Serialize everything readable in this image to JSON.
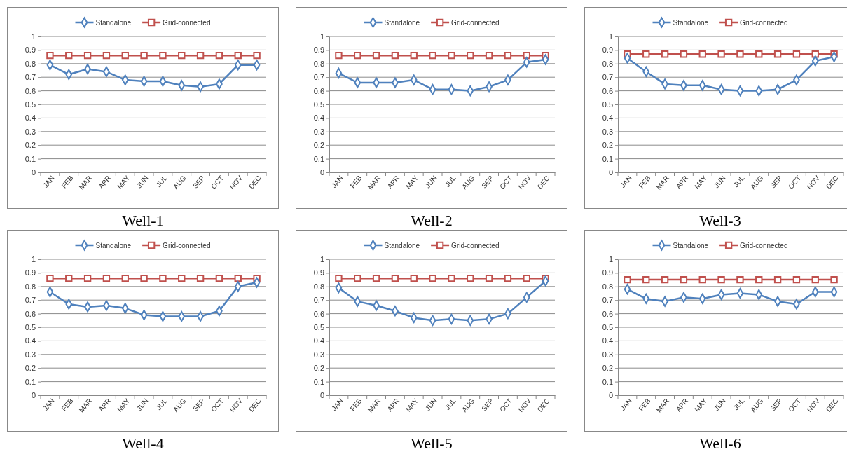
{
  "chart_data": [
    {
      "type": "line",
      "title": "Well-1",
      "categories": [
        "JAN",
        "FEB",
        "MAR",
        "APR",
        "MAY",
        "JUN",
        "JUL",
        "AUG",
        "SEP",
        "OCT",
        "NOV",
        "DEC"
      ],
      "ylim": [
        0,
        1
      ],
      "yticks": [
        0,
        0.1,
        0.2,
        0.3,
        0.4,
        0.5,
        0.6,
        0.7,
        0.8,
        0.9,
        1
      ],
      "grid": "y",
      "legend": "top",
      "series": [
        {
          "name": "Standalone",
          "color": "#4f81bd",
          "marker": "diamond",
          "values": [
            0.79,
            0.72,
            0.76,
            0.74,
            0.68,
            0.67,
            0.67,
            0.64,
            0.63,
            0.65,
            0.79,
            0.79
          ]
        },
        {
          "name": "Grid-connected",
          "color": "#c0504d",
          "marker": "square",
          "values": [
            0.86,
            0.86,
            0.86,
            0.86,
            0.86,
            0.86,
            0.86,
            0.86,
            0.86,
            0.86,
            0.86,
            0.86
          ]
        }
      ]
    },
    {
      "type": "line",
      "title": "Well-2",
      "categories": [
        "JAN",
        "FEB",
        "MAR",
        "APR",
        "MAY",
        "JUN",
        "JUL",
        "AUG",
        "SEP",
        "OCT",
        "NOV",
        "DEC"
      ],
      "ylim": [
        0,
        1
      ],
      "yticks": [
        0,
        0.1,
        0.2,
        0.3,
        0.4,
        0.5,
        0.6,
        0.7,
        0.8,
        0.9,
        1
      ],
      "grid": "y",
      "legend": "top",
      "series": [
        {
          "name": "Standalone",
          "color": "#4f81bd",
          "marker": "diamond",
          "values": [
            0.73,
            0.66,
            0.66,
            0.66,
            0.68,
            0.61,
            0.61,
            0.6,
            0.63,
            0.68,
            0.81,
            0.83
          ]
        },
        {
          "name": "Grid-connected",
          "color": "#c0504d",
          "marker": "square",
          "values": [
            0.86,
            0.86,
            0.86,
            0.86,
            0.86,
            0.86,
            0.86,
            0.86,
            0.86,
            0.86,
            0.86,
            0.86
          ]
        }
      ]
    },
    {
      "type": "line",
      "title": "Well-3",
      "categories": [
        "JAN",
        "FEB",
        "MAR",
        "APR",
        "MAY",
        "JUN",
        "JUL",
        "AUG",
        "SEP",
        "OCT",
        "NOV",
        "DEC"
      ],
      "ylim": [
        0,
        1
      ],
      "yticks": [
        0,
        0.1,
        0.2,
        0.3,
        0.4,
        0.5,
        0.6,
        0.7,
        0.8,
        0.9,
        1
      ],
      "grid": "y",
      "legend": "top",
      "series": [
        {
          "name": "Standalone",
          "color": "#4f81bd",
          "marker": "diamond",
          "values": [
            0.84,
            0.74,
            0.65,
            0.64,
            0.64,
            0.61,
            0.6,
            0.6,
            0.61,
            0.68,
            0.82,
            0.85
          ]
        },
        {
          "name": "Grid-connected",
          "color": "#c0504d",
          "marker": "square",
          "values": [
            0.87,
            0.87,
            0.87,
            0.87,
            0.87,
            0.87,
            0.87,
            0.87,
            0.87,
            0.87,
            0.87,
            0.87
          ]
        }
      ]
    },
    {
      "type": "line",
      "title": "Well-4",
      "categories": [
        "JAN",
        "FEB",
        "MAR",
        "APR",
        "MAY",
        "JUN",
        "JUL",
        "AUG",
        "SEP",
        "OCT",
        "NOV",
        "DEC"
      ],
      "ylim": [
        0,
        1
      ],
      "yticks": [
        0,
        0.1,
        0.2,
        0.3,
        0.4,
        0.5,
        0.6,
        0.7,
        0.8,
        0.9,
        1
      ],
      "grid": "y",
      "legend": "top",
      "series": [
        {
          "name": "Standalone",
          "color": "#4f81bd",
          "marker": "diamond",
          "values": [
            0.76,
            0.67,
            0.65,
            0.66,
            0.64,
            0.59,
            0.58,
            0.58,
            0.58,
            0.62,
            0.8,
            0.83
          ]
        },
        {
          "name": "Grid-connected",
          "color": "#c0504d",
          "marker": "square",
          "values": [
            0.86,
            0.86,
            0.86,
            0.86,
            0.86,
            0.86,
            0.86,
            0.86,
            0.86,
            0.86,
            0.86,
            0.86
          ]
        }
      ]
    },
    {
      "type": "line",
      "title": "Well-5",
      "categories": [
        "JAN",
        "FEB",
        "MAR",
        "APR",
        "MAY",
        "JUN",
        "JUL",
        "AUG",
        "SEP",
        "OCT",
        "NOV",
        "DEC"
      ],
      "ylim": [
        0,
        1
      ],
      "yticks": [
        0,
        0.1,
        0.2,
        0.3,
        0.4,
        0.5,
        0.6,
        0.7,
        0.8,
        0.9,
        1
      ],
      "grid": "y",
      "legend": "top",
      "series": [
        {
          "name": "Standalone",
          "color": "#4f81bd",
          "marker": "diamond",
          "values": [
            0.79,
            0.69,
            0.66,
            0.62,
            0.57,
            0.55,
            0.56,
            0.55,
            0.56,
            0.6,
            0.72,
            0.84
          ]
        },
        {
          "name": "Grid-connected",
          "color": "#c0504d",
          "marker": "square",
          "values": [
            0.86,
            0.86,
            0.86,
            0.86,
            0.86,
            0.86,
            0.86,
            0.86,
            0.86,
            0.86,
            0.86,
            0.86
          ]
        }
      ]
    },
    {
      "type": "line",
      "title": "Well-6",
      "categories": [
        "JAN",
        "FEB",
        "MAR",
        "APR",
        "MAY",
        "JUN",
        "JUL",
        "AUG",
        "SEP",
        "OCT",
        "NOV",
        "DEC"
      ],
      "ylim": [
        0,
        1
      ],
      "yticks": [
        0,
        0.1,
        0.2,
        0.3,
        0.4,
        0.5,
        0.6,
        0.7,
        0.8,
        0.9,
        1
      ],
      "grid": "y",
      "legend": "top",
      "series": [
        {
          "name": "Standalone",
          "color": "#4f81bd",
          "marker": "diamond",
          "values": [
            0.78,
            0.71,
            0.69,
            0.72,
            0.71,
            0.74,
            0.75,
            0.74,
            0.69,
            0.67,
            0.76,
            0.76
          ]
        },
        {
          "name": "Grid-connected",
          "color": "#c0504d",
          "marker": "square",
          "values": [
            0.85,
            0.85,
            0.85,
            0.85,
            0.85,
            0.85,
            0.85,
            0.85,
            0.85,
            0.85,
            0.85,
            0.85
          ]
        }
      ]
    }
  ]
}
